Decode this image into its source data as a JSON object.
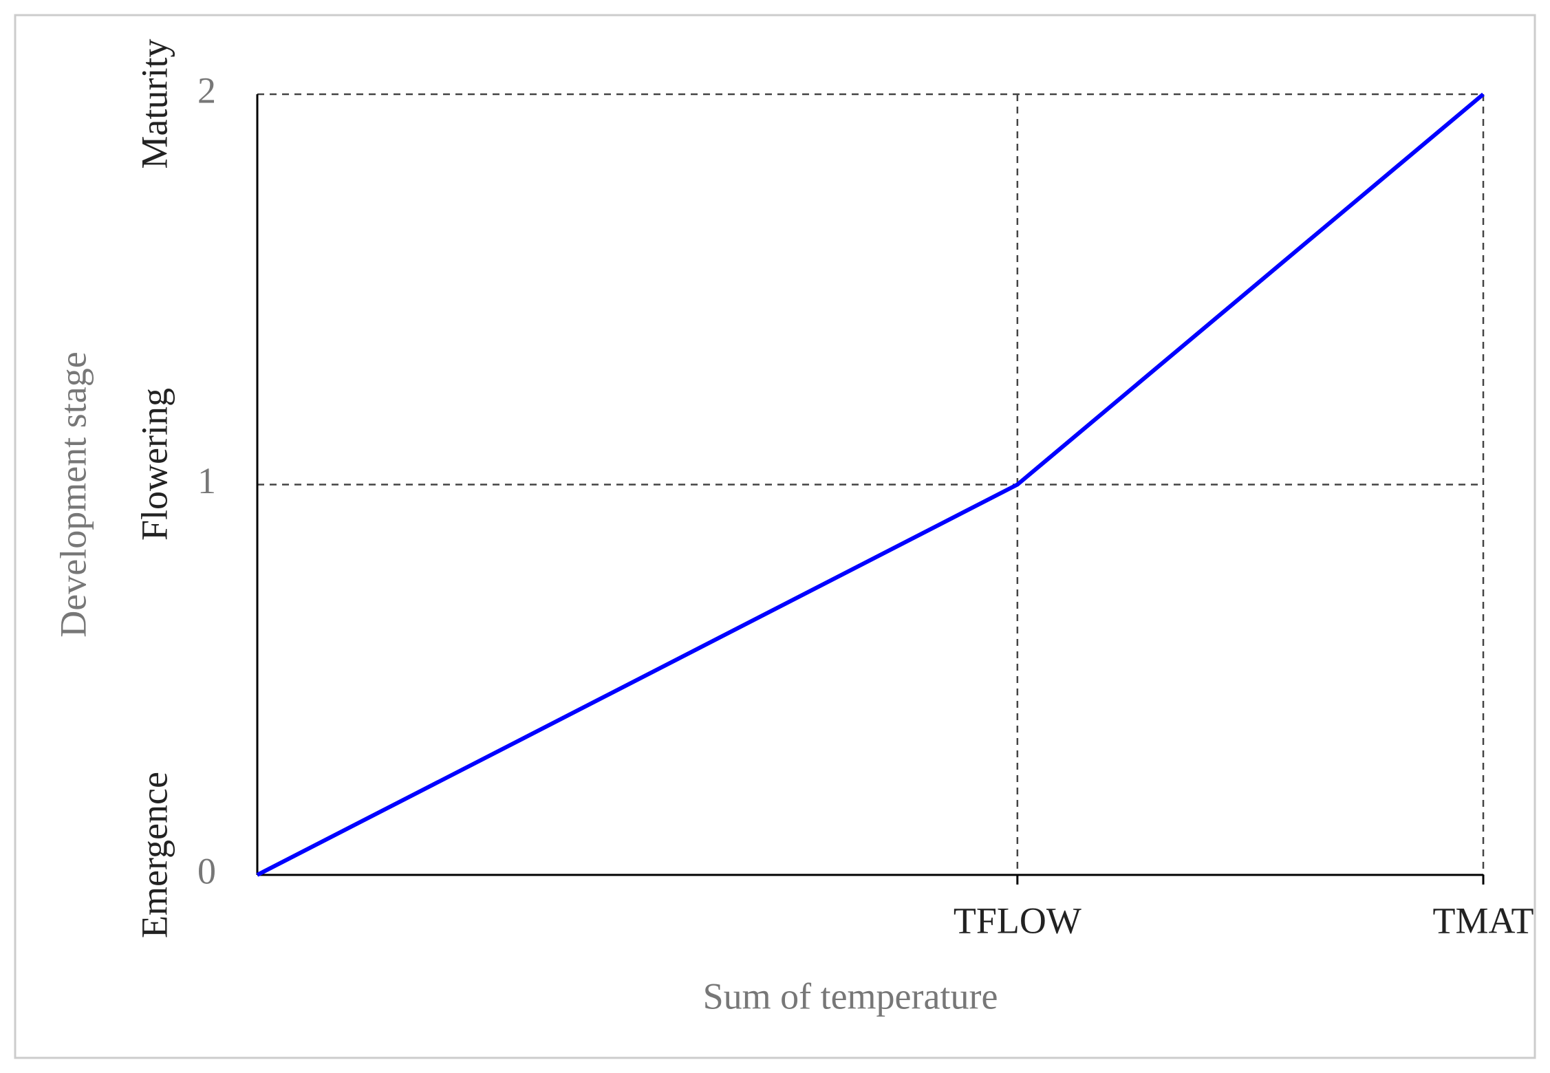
{
  "chart_data": {
    "type": "line",
    "x_label": "Sum of temperature",
    "y_label": "Development stage",
    "stage_labels": [
      "Emergence",
      "Flowering",
      "Maturity"
    ],
    "x": [
      0,
      0.62,
      1
    ],
    "series": [
      {
        "color": "#0000ff",
        "values": [
          0,
          1,
          2
        ]
      }
    ],
    "xlim": [
      0,
      1
    ],
    "xticks": [
      {
        "value": 0.62,
        "label": "TFLOW"
      },
      {
        "value": 1,
        "label": "TMAT"
      }
    ],
    "ylim": [
      0,
      2
    ],
    "yticks": [
      0,
      1,
      2
    ],
    "grid": true
  }
}
